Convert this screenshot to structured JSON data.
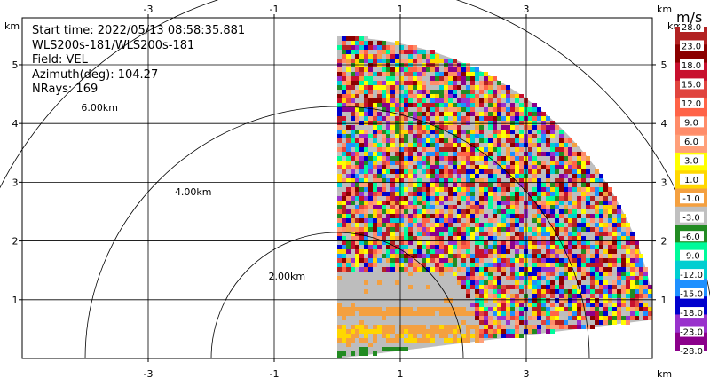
{
  "info": {
    "start_time": "Start time: 2022/05/13 08:58:35.881",
    "radar": "WLS200s-181/WLS200s-181",
    "field": "Field: VEL",
    "azimuth": "Azimuth(deg): 104.27",
    "nrays": "NRays: 169"
  },
  "axes": {
    "unit": "km",
    "x_ticks": [
      "-3",
      "-1",
      "1",
      "3"
    ],
    "x_tick_values": [
      -3,
      -1,
      1,
      3
    ],
    "y_ticks": [
      "1",
      "2",
      "3",
      "4",
      "5"
    ],
    "y_tick_values": [
      1,
      2,
      3,
      4,
      5
    ],
    "xlim": [
      -5.0,
      5.0
    ],
    "ylim": [
      0.0,
      5.8
    ]
  },
  "range_rings": [
    {
      "value": 2.0,
      "label": "2.00km"
    },
    {
      "value": 4.0,
      "label": "4.00km"
    },
    {
      "value": 6.0,
      "label": "6.00km"
    }
  ],
  "sector": {
    "azimuth_start_deg": 0,
    "azimuth_end_deg": 83,
    "max_range_km": 5.1,
    "origin_x_km": 0.0,
    "origin_y_km": 0.0
  },
  "colorbar": {
    "unit": "m/s",
    "labels": [
      "28.0",
      "23.0",
      "18.0",
      "15.0",
      "12.0",
      "9.0",
      "6.0",
      "3.0",
      "1.0",
      "-1.0",
      "-3.0",
      "-6.0",
      "-9.0",
      "-12.0",
      "-15.0",
      "-18.0",
      "-23.0",
      "-28.0"
    ],
    "colors": [
      "#b22222",
      "#8b0000",
      "#c8102e",
      "#e0443e",
      "#ff6347",
      "#ff8c69",
      "#ffa07a",
      "#ffff00",
      "#ffd700",
      "#f4a040",
      "#c0c0c0",
      "#228b22",
      "#00fa9a",
      "#00ced1",
      "#1e90ff",
      "#0000cd",
      "#9932cc",
      "#8b008b"
    ]
  }
}
